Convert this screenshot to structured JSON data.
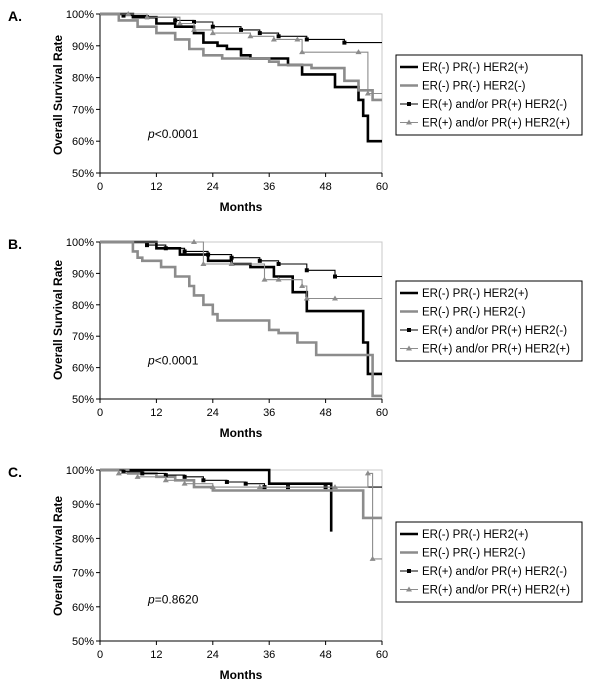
{
  "chart_data": [
    {
      "type": "line",
      "panel_label": "A.",
      "xlabel": "Months",
      "ylabel": "Overall Survival Rate",
      "xlim": [
        0,
        60
      ],
      "ylim": [
        50,
        100
      ],
      "xticks": [
        0,
        12,
        24,
        36,
        48,
        60
      ],
      "yticks": [
        50,
        60,
        70,
        80,
        90,
        100
      ],
      "annotation": {
        "p_symbol": "p",
        "p_text": "<0.0001"
      },
      "series": [
        {
          "name": "ER(-) PR(-) HER2(+)",
          "color": "#000000",
          "marker": "none",
          "x": [
            0,
            7,
            12,
            16,
            20,
            22,
            25,
            27,
            30,
            32,
            40,
            43,
            50,
            55,
            56,
            57,
            60
          ],
          "y": [
            100,
            99,
            97,
            96,
            94,
            91,
            90,
            89,
            87,
            86,
            84,
            81,
            77,
            73,
            68,
            60,
            60
          ]
        },
        {
          "name": "ER(-) PR(-) HER2(-)",
          "color": "#8c8c8c",
          "marker": "none",
          "x": [
            0,
            4,
            8,
            12,
            16,
            19,
            22,
            26,
            32,
            36,
            38,
            42,
            45,
            50,
            52,
            55,
            58,
            60
          ],
          "y": [
            100,
            98,
            96,
            94,
            92,
            89,
            87,
            86,
            86,
            85,
            84,
            84,
            83,
            83,
            79,
            76,
            73,
            73
          ]
        },
        {
          "name": "ER(+) and/or PR(+) HER2(-)",
          "color": "#000000",
          "marker": "square",
          "x": [
            0,
            5,
            10,
            16,
            20,
            24,
            30,
            34,
            38,
            44,
            52,
            60
          ],
          "y": [
            100,
            99.5,
            99,
            98,
            97.5,
            96,
            95,
            94,
            93,
            92,
            91,
            91
          ]
        },
        {
          "name": "ER(+) and/or PR(+) HER2(+)",
          "color": "#8c8c8c",
          "marker": "triangle",
          "x": [
            0,
            6,
            10,
            17,
            20,
            24,
            32,
            37,
            42,
            43,
            55,
            57,
            60
          ],
          "y": [
            100,
            100,
            99,
            97,
            95,
            94,
            93,
            92,
            92,
            88,
            88,
            75,
            75
          ]
        }
      ]
    },
    {
      "type": "line",
      "panel_label": "B.",
      "xlabel": "Months",
      "ylabel": "Overall Survival Rate",
      "xlim": [
        0,
        60
      ],
      "ylim": [
        50,
        100
      ],
      "xticks": [
        0,
        12,
        24,
        36,
        48,
        60
      ],
      "yticks": [
        50,
        60,
        70,
        80,
        90,
        100
      ],
      "annotation": {
        "p_symbol": "p",
        "p_text": "<0.0001"
      },
      "series": [
        {
          "name": "ER(-) PR(-) HER2(+)",
          "color": "#000000",
          "marker": "none",
          "x": [
            0,
            12,
            17,
            23,
            28,
            32,
            37,
            41,
            44,
            55,
            56,
            57,
            60
          ],
          "y": [
            100,
            98,
            96,
            94,
            93,
            92,
            89,
            84,
            78,
            78,
            68,
            58,
            58
          ]
        },
        {
          "name": "ER(-) PR(-) HER2(-)",
          "color": "#8c8c8c",
          "marker": "none",
          "x": [
            0,
            7,
            8,
            9,
            13,
            16,
            19,
            20,
            22,
            24,
            25,
            34,
            36,
            38,
            42,
            46,
            50,
            54,
            58,
            60
          ],
          "y": [
            100,
            97,
            95,
            94,
            92,
            89,
            86,
            83,
            80,
            77,
            75,
            75,
            72,
            71,
            68,
            64,
            64,
            64,
            51,
            51
          ]
        },
        {
          "name": "ER(+) and/or PR(+) HER2(-)",
          "color": "#000000",
          "marker": "square",
          "x": [
            0,
            10,
            14,
            18,
            23,
            28,
            34,
            38,
            44,
            50,
            60
          ],
          "y": [
            100,
            99,
            98,
            97,
            96,
            95,
            94,
            93,
            91,
            89,
            89
          ]
        },
        {
          "name": "ER(+) and/or PR(+) HER2(+)",
          "color": "#8c8c8c",
          "marker": "triangle",
          "x": [
            0,
            20,
            22,
            28,
            35,
            38,
            43,
            44,
            50,
            60
          ],
          "y": [
            100,
            100,
            93,
            93,
            88,
            88,
            86,
            82,
            82,
            82
          ]
        }
      ]
    },
    {
      "type": "line",
      "panel_label": "C.",
      "xlabel": "Months",
      "ylabel": "Overall Survival Rate",
      "xlim": [
        0,
        60
      ],
      "ylim": [
        50,
        100
      ],
      "xticks": [
        0,
        12,
        24,
        36,
        48,
        60
      ],
      "yticks": [
        50,
        60,
        70,
        80,
        90,
        100
      ],
      "annotation": {
        "p_symbol": "p",
        "p_text": "=0.8620"
      },
      "series": [
        {
          "name": "ER(-) PR(-) HER2(+)",
          "color": "#000000",
          "marker": "none",
          "x": [
            0,
            20,
            35,
            36,
            42,
            48,
            49,
            49.2
          ],
          "y": [
            100,
            100,
            100,
            96,
            96,
            96,
            96,
            82
          ]
        },
        {
          "name": "ER(-) PR(-) HER2(-)",
          "color": "#8c8c8c",
          "marker": "none",
          "x": [
            0,
            6,
            12,
            16,
            20,
            24,
            30,
            40,
            50,
            56,
            60
          ],
          "y": [
            100,
            99,
            98,
            97,
            95,
            94,
            94,
            94,
            94,
            86,
            86
          ]
        },
        {
          "name": "ER(+) and/or PR(+) HER2(-)",
          "color": "#000000",
          "marker": "square",
          "x": [
            0,
            5,
            9,
            14,
            18,
            22,
            27,
            31,
            35,
            40,
            48,
            60
          ],
          "y": [
            100,
            99.5,
            99,
            98.5,
            98,
            97,
            96.5,
            96,
            95,
            95,
            95,
            95
          ]
        },
        {
          "name": "ER(+) and/or PR(+) HER2(+)",
          "color": "#8c8c8c",
          "marker": "triangle",
          "x": [
            0,
            4,
            8,
            14,
            18,
            24,
            34,
            50,
            57,
            58,
            60
          ],
          "y": [
            100,
            99,
            98,
            97,
            96,
            95,
            95,
            95,
            99,
            74,
            74
          ]
        }
      ]
    }
  ]
}
